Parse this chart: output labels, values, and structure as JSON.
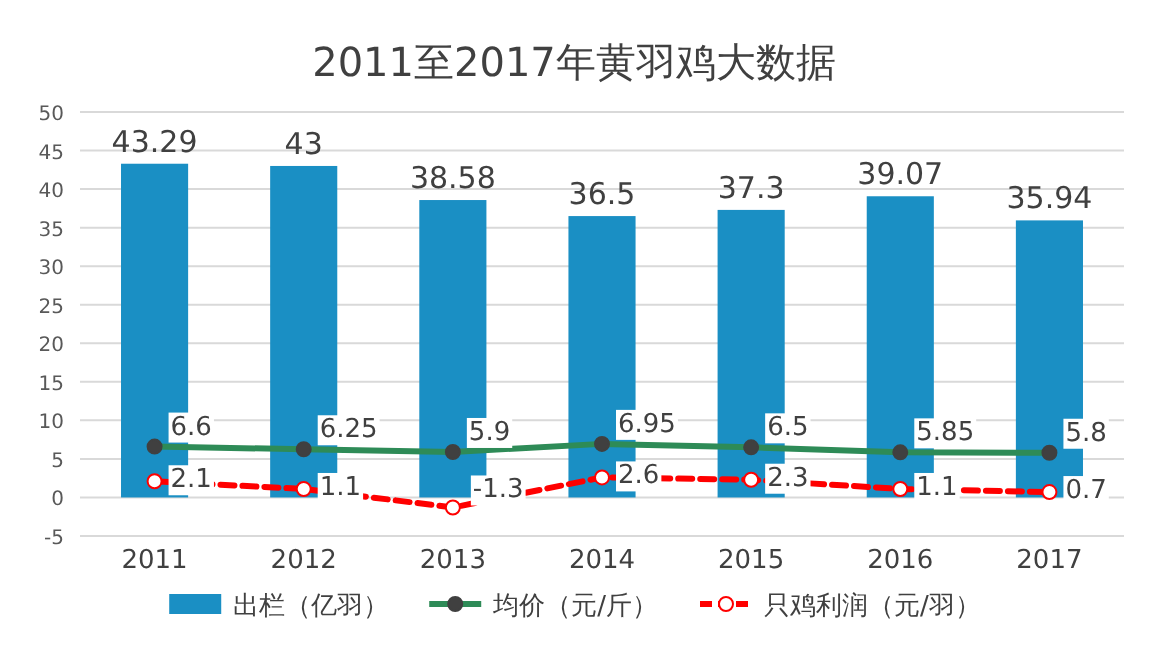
{
  "chart_data": {
    "type": "bar",
    "title": "2011至2017年黄羽鸡大数据",
    "categories": [
      "2011",
      "2012",
      "2013",
      "2014",
      "2015",
      "2016",
      "2017"
    ],
    "series": [
      {
        "name": "出栏（亿羽）",
        "color": "#1a8fc4",
        "values": [
          43.29,
          43,
          38.58,
          36.5,
          37.3,
          39.07,
          35.94
        ]
      },
      {
        "name": "均价（元/斤）",
        "type": "line",
        "color": "#2e8b57",
        "marker": "circle",
        "line_style": "solid",
        "values": [
          6.6,
          6.25,
          5.9,
          6.95,
          6.5,
          5.85,
          5.8
        ]
      },
      {
        "name": "只鸡利润（元/羽）",
        "type": "line",
        "color": "#ff0000",
        "marker": "circle",
        "line_style": "dashed",
        "values": [
          2.1,
          1.1,
          -1.3,
          2.6,
          2.3,
          1.1,
          0.7
        ]
      }
    ],
    "ylim": [
      -5,
      50
    ],
    "yticks": [
      -5,
      0,
      5,
      10,
      15,
      20,
      25,
      30,
      35,
      40,
      45,
      50
    ],
    "grid": "y",
    "legend": "bottom",
    "data_labels": true
  }
}
